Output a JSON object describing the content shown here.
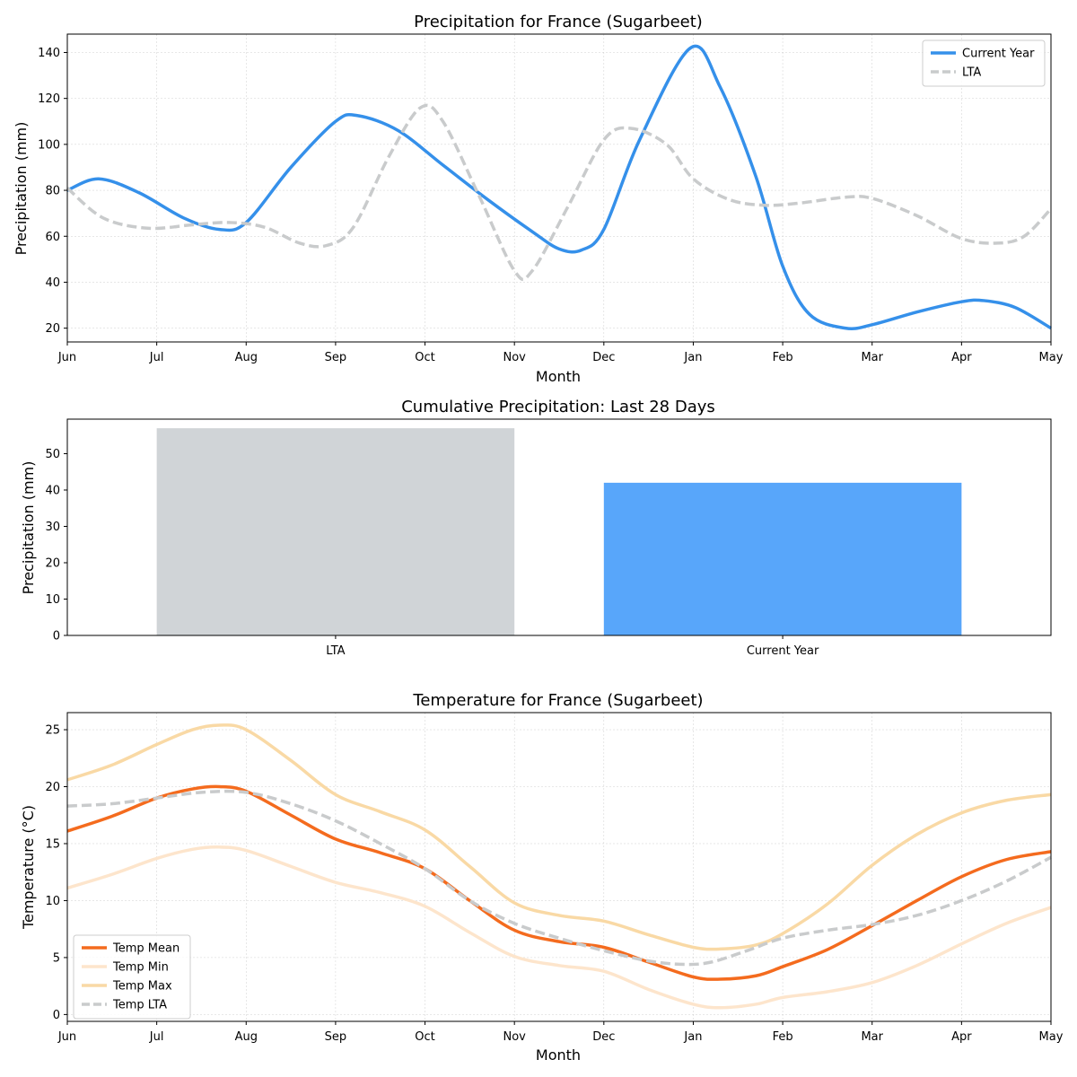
{
  "chart_data": [
    {
      "type": "line",
      "title": "Precipitation for France (Sugarbeet)",
      "xlabel": "Month",
      "ylabel": "Precipitation (mm)",
      "x_ticks": [
        "Jun",
        "Jul",
        "Aug",
        "Sep",
        "Oct",
        "Nov",
        "Dec",
        "Jan",
        "Feb",
        "Mar",
        "Apr",
        "May"
      ],
      "xlim": [
        0,
        11
      ],
      "ylim": [
        14,
        148
      ],
      "y_ticks": [
        20,
        40,
        60,
        80,
        100,
        120,
        140
      ],
      "grid": true,
      "legend_position": "top-right",
      "series": [
        {
          "name": "Current Year",
          "color": "#3590ea",
          "style": "solid",
          "points": [
            [
              0,
              80
            ],
            [
              0.35,
              85
            ],
            [
              0.8,
              79
            ],
            [
              1.3,
              68
            ],
            [
              1.7,
              63
            ],
            [
              2.0,
              66
            ],
            [
              2.5,
              90
            ],
            [
              3.0,
              110
            ],
            [
              3.25,
              112.5
            ],
            [
              3.7,
              106
            ],
            [
              4.2,
              91
            ],
            [
              4.7,
              76
            ],
            [
              5.2,
              62
            ],
            [
              5.5,
              54.5
            ],
            [
              5.75,
              54
            ],
            [
              6.0,
              63
            ],
            [
              6.4,
              102
            ],
            [
              6.97,
              142
            ],
            [
              7.3,
              125
            ],
            [
              7.7,
              86
            ],
            [
              8.0,
              47
            ],
            [
              8.3,
              26
            ],
            [
              8.7,
              20
            ],
            [
              9.0,
              21.5
            ],
            [
              9.5,
              27
            ],
            [
              10.0,
              31.5
            ],
            [
              10.25,
              32
            ],
            [
              10.6,
              29
            ],
            [
              11.0,
              20
            ]
          ]
        },
        {
          "name": "LTA",
          "color": "#c9cbcc",
          "style": "dashed",
          "points": [
            [
              0,
              81
            ],
            [
              0.4,
              68
            ],
            [
              0.9,
              63.5
            ],
            [
              1.4,
              65
            ],
            [
              1.8,
              66
            ],
            [
              2.2,
              64
            ],
            [
              2.6,
              57
            ],
            [
              2.9,
              56
            ],
            [
              3.2,
              64
            ],
            [
              3.6,
              95
            ],
            [
              3.95,
              116
            ],
            [
              4.2,
              110
            ],
            [
              4.6,
              78
            ],
            [
              5.0,
              45
            ],
            [
              5.2,
              45
            ],
            [
              5.6,
              73
            ],
            [
              6.0,
              102
            ],
            [
              6.3,
              107
            ],
            [
              6.7,
              100
            ],
            [
              7.0,
              85
            ],
            [
              7.4,
              76
            ],
            [
              7.8,
              73.5
            ],
            [
              8.2,
              74.5
            ],
            [
              8.7,
              77
            ],
            [
              9.0,
              76.5
            ],
            [
              9.5,
              69
            ],
            [
              10.0,
              59
            ],
            [
              10.4,
              57
            ],
            [
              10.7,
              60
            ],
            [
              11.0,
              72
            ]
          ]
        }
      ]
    },
    {
      "type": "bar",
      "title": "Cumulative Precipitation: Last 28 Days",
      "xlabel": "",
      "ylabel": "Precipitation (mm)",
      "categories": [
        "LTA",
        "Current Year"
      ],
      "values": [
        57,
        42
      ],
      "colors": [
        "#d0d4d7",
        "#58a6fa"
      ],
      "ylim": [
        0,
        59.5
      ],
      "y_ticks": [
        0,
        10,
        20,
        30,
        40,
        50
      ],
      "grid": false
    },
    {
      "type": "line",
      "title": "Temperature for France (Sugarbeet)",
      "xlabel": "Month",
      "ylabel": "Temperature (°C)",
      "x_ticks": [
        "Jun",
        "Jul",
        "Aug",
        "Sep",
        "Oct",
        "Nov",
        "Dec",
        "Jan",
        "Feb",
        "Mar",
        "Apr",
        "May"
      ],
      "xlim": [
        0,
        11
      ],
      "ylim": [
        -0.6,
        26.5
      ],
      "y_ticks": [
        0,
        5,
        10,
        15,
        20,
        25
      ],
      "grid": true,
      "legend_position": "bottom-left",
      "series": [
        {
          "name": "Temp Mean",
          "color": "#f46b1e",
          "style": "solid",
          "points": [
            [
              0,
              16.1
            ],
            [
              0.5,
              17.4
            ],
            [
              1.0,
              19.0
            ],
            [
              1.4,
              19.8
            ],
            [
              1.7,
              20.0
            ],
            [
              2.0,
              19.6
            ],
            [
              2.5,
              17.5
            ],
            [
              3.0,
              15.4
            ],
            [
              3.5,
              14.2
            ],
            [
              4.0,
              12.8
            ],
            [
              4.5,
              10.0
            ],
            [
              5.0,
              7.4
            ],
            [
              5.5,
              6.4
            ],
            [
              6.0,
              5.9
            ],
            [
              6.5,
              4.6
            ],
            [
              7.0,
              3.3
            ],
            [
              7.3,
              3.1
            ],
            [
              7.7,
              3.4
            ],
            [
              8.0,
              4.2
            ],
            [
              8.5,
              5.7
            ],
            [
              9.0,
              7.8
            ],
            [
              9.5,
              10.0
            ],
            [
              10.0,
              12.1
            ],
            [
              10.5,
              13.6
            ],
            [
              11.0,
              14.3
            ]
          ]
        },
        {
          "name": "Temp Min",
          "color": "#fde5cc",
          "style": "solid",
          "points": [
            [
              0,
              11.1
            ],
            [
              0.5,
              12.3
            ],
            [
              1.0,
              13.7
            ],
            [
              1.4,
              14.5
            ],
            [
              1.7,
              14.7
            ],
            [
              2.0,
              14.4
            ],
            [
              2.5,
              13.0
            ],
            [
              3.0,
              11.6
            ],
            [
              3.5,
              10.7
            ],
            [
              4.0,
              9.5
            ],
            [
              4.5,
              7.2
            ],
            [
              5.0,
              5.1
            ],
            [
              5.5,
              4.3
            ],
            [
              6.0,
              3.8
            ],
            [
              6.5,
              2.2
            ],
            [
              7.0,
              0.9
            ],
            [
              7.3,
              0.6
            ],
            [
              7.7,
              0.9
            ],
            [
              8.0,
              1.5
            ],
            [
              8.5,
              2.0
            ],
            [
              9.0,
              2.8
            ],
            [
              9.5,
              4.3
            ],
            [
              10.0,
              6.2
            ],
            [
              10.5,
              8.0
            ],
            [
              11.0,
              9.4
            ]
          ]
        },
        {
          "name": "Temp Max",
          "color": "#f9d9a5",
          "style": "solid",
          "points": [
            [
              0,
              20.6
            ],
            [
              0.5,
              21.9
            ],
            [
              1.0,
              23.7
            ],
            [
              1.4,
              25.0
            ],
            [
              1.7,
              25.4
            ],
            [
              2.0,
              25.0
            ],
            [
              2.5,
              22.3
            ],
            [
              3.0,
              19.3
            ],
            [
              3.5,
              17.8
            ],
            [
              4.0,
              16.2
            ],
            [
              4.5,
              13.0
            ],
            [
              5.0,
              9.8
            ],
            [
              5.5,
              8.7
            ],
            [
              6.0,
              8.2
            ],
            [
              6.5,
              7.0
            ],
            [
              7.0,
              5.9
            ],
            [
              7.3,
              5.75
            ],
            [
              7.7,
              6.1
            ],
            [
              8.0,
              7.1
            ],
            [
              8.5,
              9.7
            ],
            [
              9.0,
              13.1
            ],
            [
              9.5,
              15.8
            ],
            [
              10.0,
              17.7
            ],
            [
              10.5,
              18.8
            ],
            [
              11.0,
              19.3
            ]
          ]
        },
        {
          "name": "Temp LTA",
          "color": "#c9cbcc",
          "style": "dashed",
          "points": [
            [
              0,
              18.3
            ],
            [
              0.5,
              18.5
            ],
            [
              1.0,
              19.0
            ],
            [
              1.5,
              19.5
            ],
            [
              2.0,
              19.5
            ],
            [
              2.5,
              18.5
            ],
            [
              3.0,
              17.0
            ],
            [
              3.5,
              15.0
            ],
            [
              4.0,
              12.8
            ],
            [
              4.5,
              10.0
            ],
            [
              5.0,
              8.0
            ],
            [
              5.5,
              6.7
            ],
            [
              6.0,
              5.6
            ],
            [
              6.5,
              4.7
            ],
            [
              6.9,
              4.4
            ],
            [
              7.2,
              4.6
            ],
            [
              7.6,
              5.6
            ],
            [
              8.0,
              6.7
            ],
            [
              8.5,
              7.4
            ],
            [
              9.0,
              7.9
            ],
            [
              9.5,
              8.7
            ],
            [
              10.0,
              10.0
            ],
            [
              10.5,
              11.7
            ],
            [
              11.0,
              13.8
            ]
          ]
        }
      ]
    }
  ]
}
